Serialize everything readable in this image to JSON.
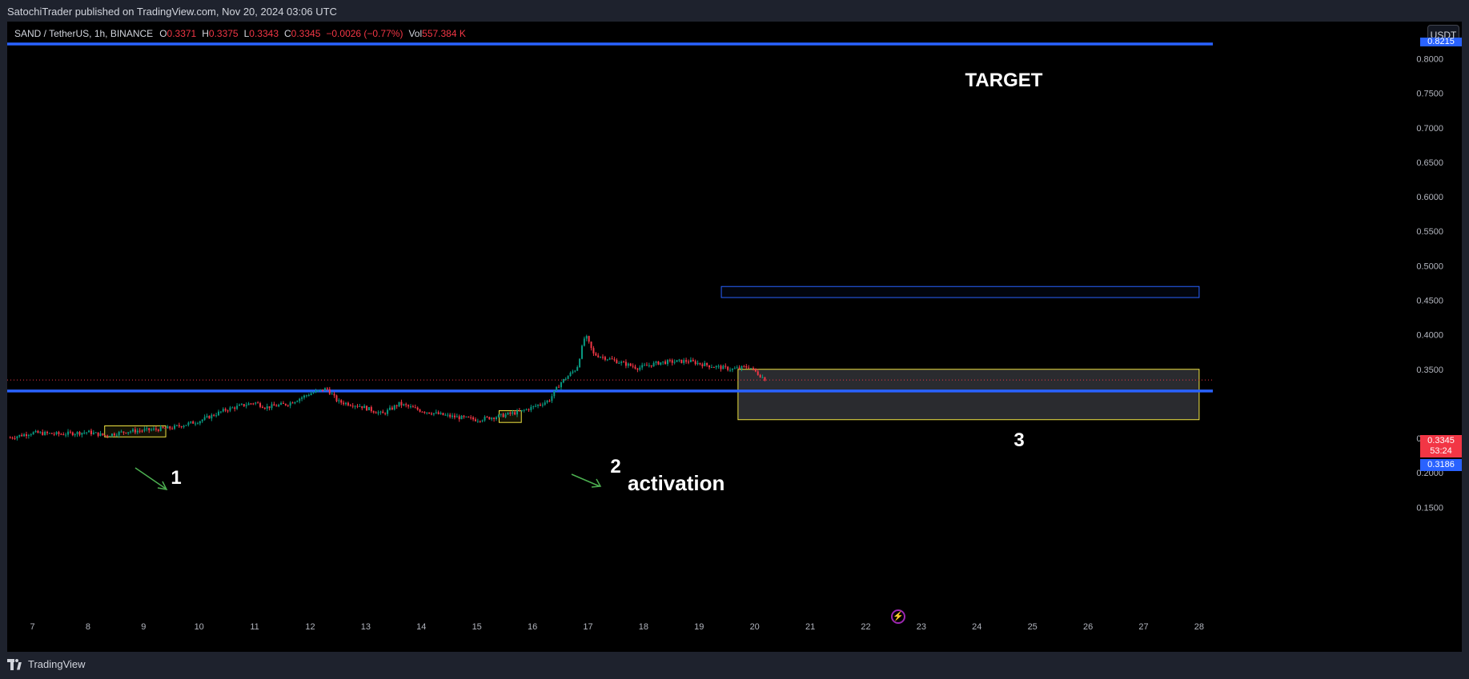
{
  "header": {
    "publisher": "SatochiTrader published on TradingView.com, Nov 20, 2024 03:06 UTC"
  },
  "legend": {
    "symbol": "SAND / TetherUS, 1h, BINANCE",
    "open_label": "O",
    "open": "0.3371",
    "high_label": "H",
    "high": "0.3375",
    "low_label": "L",
    "low": "0.3343",
    "close_label": "C",
    "close": "0.3345",
    "change": "−0.0026 (−0.77%)",
    "vol_label": "Vol",
    "vol": "557.384 K"
  },
  "currency_button": "USDT",
  "price_axis": {
    "ticks": [
      "0.8000",
      "0.7500",
      "0.7000",
      "0.6500",
      "0.6000",
      "0.5500",
      "0.5000",
      "0.4500",
      "0.4000",
      "0.3500",
      "0.2500",
      "0.2000",
      "0.1500"
    ],
    "top_line_label": "0.8215",
    "current_price": "0.3345",
    "countdown": "53:24",
    "level_label": "0.3186"
  },
  "time_axis": {
    "ticks": [
      "7",
      "8",
      "9",
      "10",
      "11",
      "12",
      "13",
      "14",
      "15",
      "16",
      "17",
      "18",
      "19",
      "20",
      "21",
      "22",
      "23",
      "24",
      "25",
      "26",
      "27",
      "28"
    ]
  },
  "annotations": {
    "target": "TARGET",
    "label_1": "1",
    "label_2": "2",
    "label_3": "3",
    "activation": "activation"
  },
  "colors": {
    "background": "#000000",
    "up": "#089981",
    "down": "#f23645",
    "level_line": "#2962ff",
    "zone_border": "#f0e442",
    "arrow": "#4caf50"
  },
  "footer": {
    "brand": "TradingView"
  },
  "chart_data": {
    "type": "candlestick",
    "symbol": "SAND / TetherUS",
    "interval": "1h",
    "x_range": [
      "Nov 6",
      "Nov 28"
    ],
    "ylim": [
      0.12,
      0.83
    ],
    "horizontal_levels": [
      0.8215,
      0.3186
    ],
    "current_price": 0.3345,
    "zones": [
      {
        "label": "1",
        "x_start": 8.3,
        "x_end": 9.4,
        "y_low": 0.252,
        "y_high": 0.268
      },
      {
        "label": "2",
        "x_start": 15.4,
        "x_end": 15.8,
        "y_low": 0.273,
        "y_high": 0.29
      },
      {
        "label": "3",
        "x_start": 19.7,
        "x_end": 28,
        "y_low": 0.277,
        "y_high": 0.35
      },
      {
        "label": "",
        "x_start": 19.4,
        "x_end": 28,
        "y_low": 0.454,
        "y_high": 0.47
      }
    ],
    "path": [
      [
        6.6,
        0.251
      ],
      [
        7.0,
        0.258
      ],
      [
        7.5,
        0.256
      ],
      [
        8.0,
        0.259
      ],
      [
        8.3,
        0.254
      ],
      [
        8.7,
        0.26
      ],
      [
        9.1,
        0.262
      ],
      [
        9.5,
        0.265
      ],
      [
        10.0,
        0.275
      ],
      [
        10.5,
        0.292
      ],
      [
        11.0,
        0.302
      ],
      [
        11.2,
        0.295
      ],
      [
        11.6,
        0.3
      ],
      [
        12.0,
        0.315
      ],
      [
        12.3,
        0.322
      ],
      [
        12.5,
        0.303
      ],
      [
        12.9,
        0.297
      ],
      [
        13.3,
        0.285
      ],
      [
        13.6,
        0.3
      ],
      [
        14.0,
        0.29
      ],
      [
        14.5,
        0.282
      ],
      [
        15.0,
        0.277
      ],
      [
        15.4,
        0.282
      ],
      [
        15.8,
        0.289
      ],
      [
        16.0,
        0.295
      ],
      [
        16.3,
        0.305
      ],
      [
        16.5,
        0.33
      ],
      [
        16.8,
        0.352
      ],
      [
        16.95,
        0.4
      ],
      [
        17.1,
        0.372
      ],
      [
        17.5,
        0.362
      ],
      [
        17.9,
        0.352
      ],
      [
        18.3,
        0.36
      ],
      [
        18.8,
        0.362
      ],
      [
        19.2,
        0.355
      ],
      [
        19.6,
        0.35
      ],
      [
        19.9,
        0.354
      ],
      [
        20.2,
        0.3345
      ]
    ]
  }
}
